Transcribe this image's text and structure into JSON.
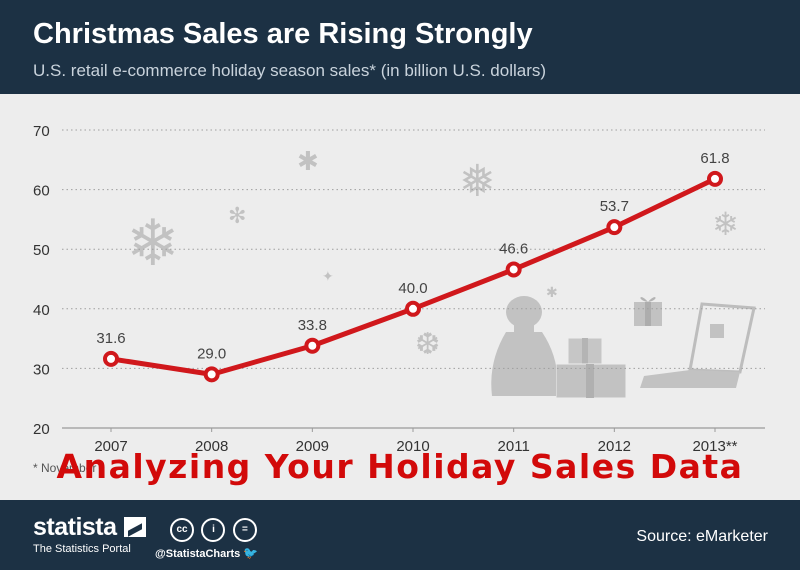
{
  "header": {
    "title": "Christmas Sales are Rising Strongly",
    "subtitle": "U.S. retail e-commerce holiday season sales* (in billion U.S. dollars)"
  },
  "footnote": "* November",
  "overlay_text": "Analyzing Your Holiday Sales Data",
  "footer": {
    "brand": "statista",
    "tagline": "The Statistics Portal",
    "cc_icons": [
      "cc",
      "i",
      "="
    ],
    "handle": "@StatistaCharts",
    "source": "Source: eMarketer"
  },
  "colors": {
    "background_dark": "#1c3144",
    "plot_background": "#ededed",
    "line": "#d0181c",
    "decoration": "#c2c2c2"
  },
  "decorations": [
    "snowflake-icon",
    "gift-sack-icon",
    "gift-box-icon",
    "laptop-icon"
  ],
  "chart_data": {
    "type": "line",
    "title": "Christmas Sales are Rising Strongly",
    "subtitle": "U.S. retail e-commerce holiday season sales* (in billion U.S. dollars)",
    "categories": [
      "2007",
      "2008",
      "2009",
      "2010",
      "2011",
      "2012",
      "2013**"
    ],
    "values": [
      31.6,
      29.0,
      33.8,
      40.0,
      46.6,
      53.7,
      61.8
    ],
    "data_labels": [
      "31.6",
      "29.0",
      "33.8",
      "40.0",
      "46.6",
      "53.7",
      "61.8"
    ],
    "ylim": [
      20,
      70
    ],
    "yticks": [
      20,
      30,
      40,
      50,
      60,
      70
    ],
    "xlabel": "",
    "ylabel": "",
    "grid": true,
    "legend": "none"
  }
}
